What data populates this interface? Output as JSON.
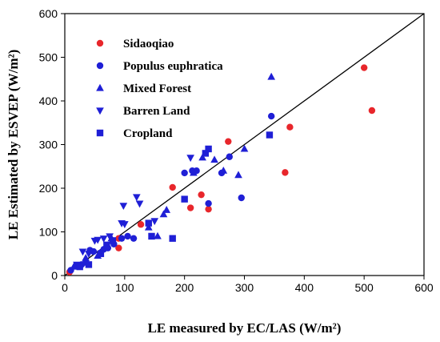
{
  "colors": {
    "sidaoqiao": "#e8262b",
    "blue": "#1f1fd6",
    "axis": "#000000"
  },
  "chart_data": {
    "type": "scatter",
    "xlabel": "LE measured by EC/LAS (W/m²)",
    "ylabel": "LE Estimated by ESVEP (W/m²)",
    "xlim": [
      0,
      600
    ],
    "ylim": [
      0,
      600
    ],
    "x_ticks": [
      "0",
      "100",
      "200",
      "300",
      "400",
      "500",
      "600"
    ],
    "y_ticks": [
      "0",
      "100",
      "200",
      "300",
      "400",
      "500",
      "600"
    ],
    "grid": false,
    "legend_position": "top-left",
    "reference_line": "1:1",
    "series": [
      {
        "name": "Sidaoqiao",
        "marker": "circle",
        "color": "#e8262b",
        "points": [
          [
            8,
            8
          ],
          [
            90,
            63
          ],
          [
            90,
            85
          ],
          [
            127,
            117
          ],
          [
            180,
            202
          ],
          [
            210,
            155
          ],
          [
            228,
            185
          ],
          [
            240,
            152
          ],
          [
            273,
            307
          ],
          [
            368,
            236
          ],
          [
            376,
            340
          ],
          [
            500,
            476
          ],
          [
            513,
            378
          ]
        ]
      },
      {
        "name": "Populus euphratica",
        "marker": "circle",
        "color": "#1f1fd6",
        "points": [
          [
            10,
            12
          ],
          [
            28,
            25
          ],
          [
            35,
            30
          ],
          [
            42,
            58
          ],
          [
            48,
            55
          ],
          [
            60,
            52
          ],
          [
            65,
            60
          ],
          [
            72,
            63
          ],
          [
            82,
            72
          ],
          [
            95,
            85
          ],
          [
            105,
            90
          ],
          [
            115,
            85
          ],
          [
            200,
            235
          ],
          [
            213,
            240
          ],
          [
            220,
            240
          ],
          [
            240,
            165
          ],
          [
            262,
            235
          ],
          [
            275,
            272
          ],
          [
            295,
            178
          ],
          [
            345,
            365
          ]
        ]
      },
      {
        "name": "Mixed Forest",
        "marker": "triangle-up",
        "color": "#1f1fd6",
        "points": [
          [
            15,
            20
          ],
          [
            35,
            40
          ],
          [
            55,
            45
          ],
          [
            78,
            85
          ],
          [
            140,
            110
          ],
          [
            155,
            90
          ],
          [
            165,
            140
          ],
          [
            170,
            150
          ],
          [
            215,
            235
          ],
          [
            230,
            270
          ],
          [
            250,
            265
          ],
          [
            265,
            240
          ],
          [
            290,
            230
          ],
          [
            300,
            290
          ],
          [
            345,
            455
          ]
        ]
      },
      {
        "name": "Barren Land",
        "marker": "triangle-down",
        "color": "#1f1fd6",
        "points": [
          [
            20,
            25
          ],
          [
            30,
            55
          ],
          [
            40,
            50
          ],
          [
            50,
            80
          ],
          [
            55,
            82
          ],
          [
            65,
            85
          ],
          [
            75,
            90
          ],
          [
            95,
            120
          ],
          [
            98,
            160
          ],
          [
            100,
            118
          ],
          [
            120,
            180
          ],
          [
            125,
            165
          ],
          [
            150,
            125
          ],
          [
            210,
            270
          ]
        ]
      },
      {
        "name": "Cropland",
        "marker": "square",
        "color": "#1f1fd6",
        "points": [
          [
            25,
            20
          ],
          [
            40,
            25
          ],
          [
            60,
            50
          ],
          [
            70,
            70
          ],
          [
            80,
            80
          ],
          [
            140,
            120
          ],
          [
            145,
            90
          ],
          [
            180,
            85
          ],
          [
            200,
            175
          ],
          [
            235,
            280
          ],
          [
            240,
            290
          ],
          [
            342,
            322
          ]
        ]
      }
    ]
  }
}
